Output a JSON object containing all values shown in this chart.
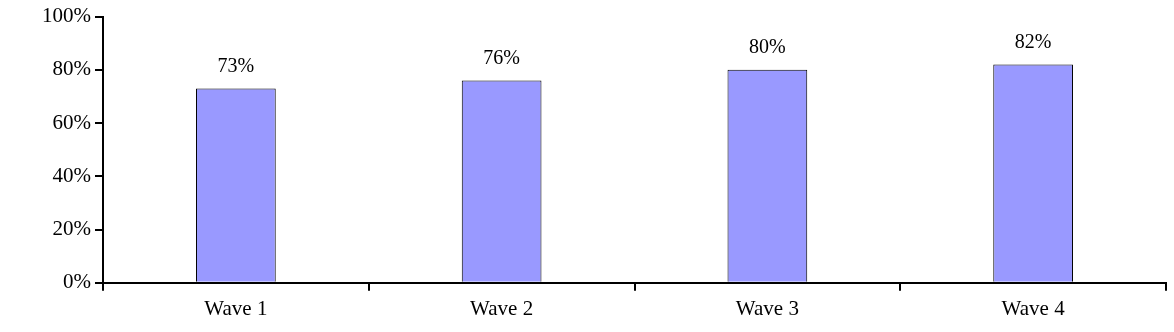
{
  "chart_data": {
    "type": "bar",
    "categories": [
      "Wave 1",
      "Wave 2",
      "Wave 3",
      "Wave 4"
    ],
    "values": [
      73,
      76,
      80,
      82
    ],
    "value_labels": [
      "73%",
      "76%",
      "80%",
      "82%"
    ],
    "color": "#9999ff",
    "ylim": [
      0,
      100
    ],
    "yticks": [
      {
        "value": 0,
        "label": "0%"
      },
      {
        "value": 20,
        "label": "20%"
      },
      {
        "value": 40,
        "label": "40%"
      },
      {
        "value": 60,
        "label": "60%"
      },
      {
        "value": 80,
        "label": "80%"
      },
      {
        "value": 100,
        "label": "100%"
      }
    ]
  }
}
